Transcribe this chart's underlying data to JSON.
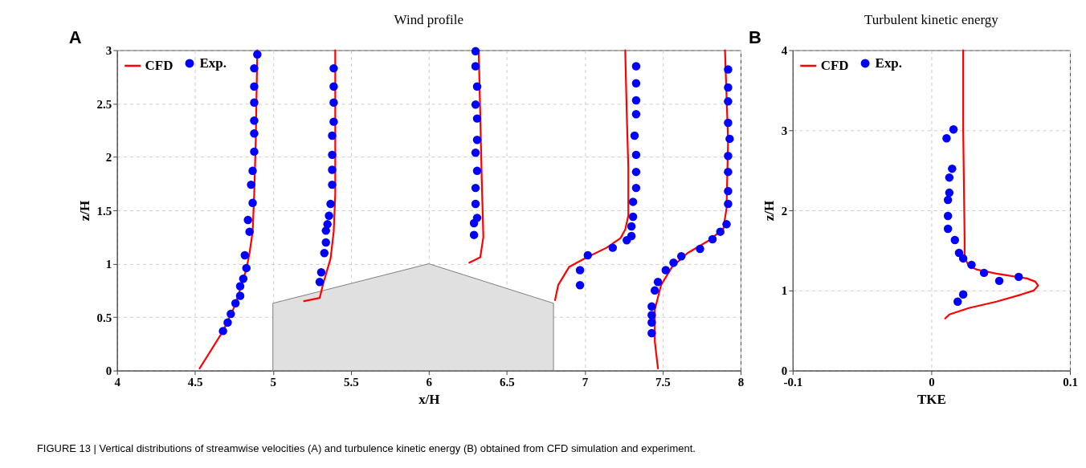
{
  "chart_data": [
    {
      "type": "line",
      "title": "Wind profile",
      "xlabel": "x/H",
      "ylabel": "z/H",
      "xlim": [
        4,
        8
      ],
      "ylim": [
        0,
        3
      ],
      "xticks": [
        4,
        4.5,
        5,
        5.5,
        6,
        6.5,
        7,
        7.5,
        8
      ],
      "yticks": [
        0,
        0.5,
        1,
        1.5,
        2,
        2.5,
        3
      ],
      "grid": true,
      "legend": "top left",
      "line_style": "solid",
      "annotations": [
        "A",
        "FIGURE 13 | Vertical distributions of streamwise velocities (A) and turbulence kinetic energy (B) obtained from CFD simulation and experiment."
      ],
      "series": [
        {
          "type": "area",
          "color": "#e0e0e0",
          "x": [
            5,
            6,
            6.8
          ],
          "values": [
            0.63,
            1,
            0.63
          ]
        },
        {
          "name": "CFD",
          "color": "#ff0000",
          "x": [
            4.53,
            4.68,
            4.76,
            4.83,
            4.85,
            4.87,
            4.88,
            4.89,
            4.9
          ],
          "values": [
            0.02,
            0.37,
            0.62,
            0.95,
            1.1,
            1.3,
            1.65,
            2.15,
            3.0
          ]
        },
        {
          "color": "#ff0000",
          "x": [
            5.2,
            5.3,
            5.32,
            5.37,
            5.39,
            5.4,
            5.4
          ],
          "values": [
            0.65,
            0.68,
            0.8,
            1.05,
            1.3,
            1.65,
            3.0
          ]
        },
        {
          "color": "#ff0000",
          "x": [
            6.26,
            6.33,
            6.35,
            6.34,
            6.33,
            6.32
          ],
          "values": [
            1.01,
            1.06,
            1.25,
            1.77,
            2.4,
            3.0
          ]
        },
        {
          "color": "#ff0000",
          "x": [
            6.81,
            6.83,
            6.9,
            7.0,
            7.14,
            7.23,
            7.26,
            7.28,
            7.28,
            7.27,
            7.26
          ],
          "values": [
            0.66,
            0.8,
            0.97,
            1.05,
            1.15,
            1.24,
            1.32,
            1.45,
            1.9,
            2.4,
            3.0
          ]
        },
        {
          "color": "#ff0000",
          "x": [
            7.47,
            7.45,
            7.45,
            7.49,
            7.56,
            7.66,
            7.8,
            7.89,
            7.91,
            7.92,
            7.9
          ],
          "values": [
            0.02,
            0.27,
            0.57,
            0.8,
            0.97,
            1.1,
            1.22,
            1.33,
            1.52,
            2.15,
            3.0
          ]
        },
        {
          "type": "scatter",
          "marker": "circle",
          "name": "Exp.",
          "color": "#0000ff",
          "x": [
            4.9,
            4.88,
            4.88,
            4.88,
            4.88,
            4.88,
            4.88,
            4.87,
            4.86,
            4.87,
            4.84,
            4.85,
            4.82,
            4.83,
            4.81,
            4.79,
            4.79,
            4.76,
            4.73,
            4.71,
            4.68
          ],
          "values": [
            2.96,
            2.83,
            2.66,
            2.51,
            2.34,
            2.22,
            2.05,
            1.87,
            1.74,
            1.57,
            1.41,
            1.3,
            1.08,
            0.96,
            0.86,
            0.79,
            0.7,
            0.63,
            0.53,
            0.45,
            0.37
          ]
        },
        {
          "type": "scatter",
          "marker": "circle",
          "color": "#0000ff",
          "x": [
            5.39,
            5.39,
            5.39,
            5.39,
            5.38,
            5.38,
            5.38,
            5.38,
            5.37,
            5.36,
            5.35,
            5.34,
            5.34,
            5.33,
            5.31,
            5.3
          ],
          "values": [
            2.83,
            2.66,
            2.51,
            2.33,
            2.2,
            2.02,
            1.88,
            1.74,
            1.56,
            1.45,
            1.37,
            1.31,
            1.2,
            1.1,
            0.92,
            0.83
          ]
        },
        {
          "type": "scatter",
          "marker": "circle",
          "color": "#0000ff",
          "x": [
            6.3,
            6.3,
            6.31,
            6.3,
            6.31,
            6.31,
            6.3,
            6.31,
            6.3,
            6.3,
            6.31,
            6.29,
            6.29
          ],
          "values": [
            2.99,
            2.85,
            2.66,
            2.49,
            2.36,
            2.16,
            2.04,
            1.87,
            1.71,
            1.56,
            1.43,
            1.38,
            1.27
          ]
        },
        {
          "type": "scatter",
          "marker": "circle",
          "color": "#0000ff",
          "x": [
            7.33,
            7.33,
            7.33,
            7.33,
            7.32,
            7.33,
            7.33,
            7.33,
            7.31,
            7.31,
            7.3,
            7.3,
            7.27,
            7.18,
            7.02,
            6.97,
            6.97
          ],
          "values": [
            2.85,
            2.69,
            2.53,
            2.4,
            2.2,
            2.02,
            1.86,
            1.71,
            1.58,
            1.44,
            1.35,
            1.26,
            1.22,
            1.15,
            1.08,
            0.94,
            0.8
          ]
        },
        {
          "type": "scatter",
          "marker": "circle",
          "color": "#0000ff",
          "x": [
            7.92,
            7.92,
            7.92,
            7.92,
            7.93,
            7.92,
            7.92,
            7.92,
            7.92,
            7.91,
            7.87,
            7.82,
            7.74,
            7.62,
            7.57,
            7.52,
            7.47,
            7.45,
            7.43,
            7.43,
            7.43,
            7.43
          ],
          "values": [
            2.82,
            2.65,
            2.52,
            2.32,
            2.17,
            2.01,
            1.86,
            1.68,
            1.56,
            1.37,
            1.3,
            1.23,
            1.14,
            1.07,
            1.01,
            0.94,
            0.83,
            0.75,
            0.6,
            0.52,
            0.45,
            0.35
          ]
        }
      ]
    },
    {
      "type": "line",
      "title": "Turbulent kinetic energy",
      "xlabel": "TKE",
      "ylabel": "z/H",
      "xlim": [
        -0.1,
        0.1
      ],
      "ylim": [
        0,
        4
      ],
      "xticks": [
        -0.1,
        0,
        0.1
      ],
      "yticks": [
        0,
        1,
        2,
        3,
        4
      ],
      "grid": true,
      "legend": "top left",
      "line_style": "solid",
      "annotations": [
        "B"
      ],
      "series": [
        {
          "name": "CFD",
          "color": "#ff0000",
          "x": [
            0.01,
            0.013,
            0.027,
            0.047,
            0.065,
            0.074,
            0.077,
            0.075,
            0.069,
            0.047,
            0.033,
            0.027,
            0.024,
            0.024,
            0.023,
            0.023
          ],
          "values": [
            0.65,
            0.7,
            0.78,
            0.86,
            0.95,
            1.0,
            1.06,
            1.11,
            1.15,
            1.21,
            1.26,
            1.31,
            1.41,
            1.66,
            2.99,
            4.0
          ]
        },
        {
          "type": "scatter",
          "marker": "circle",
          "name": "Exp.",
          "color": "#0000ff",
          "x": [
            0.016,
            0.011,
            0.015,
            0.013,
            0.013,
            0.012,
            0.012,
            0.012,
            0.017,
            0.02,
            0.023,
            0.029,
            0.038,
            0.049,
            0.063,
            0.023,
            0.019
          ],
          "values": [
            3.01,
            2.9,
            2.52,
            2.41,
            2.22,
            2.13,
            1.93,
            1.77,
            1.63,
            1.47,
            1.4,
            1.32,
            1.22,
            1.12,
            1.17,
            0.95,
            0.86
          ]
        }
      ]
    }
  ]
}
